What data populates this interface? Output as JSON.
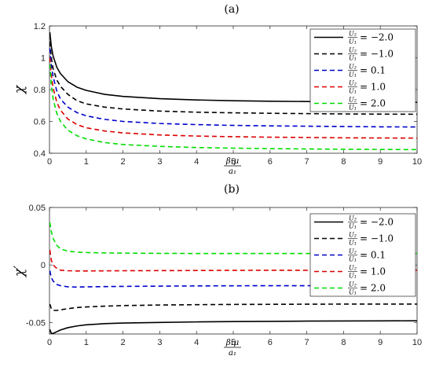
{
  "chart_data": [
    {
      "type": "line",
      "title": "(a)",
      "ylabel": "χ",
      "xlabel": {
        "num": "β₁μ",
        "den": "a₁"
      },
      "xlim": [
        0,
        10
      ],
      "ylim": [
        0.4,
        1.2
      ],
      "xticks": [
        0,
        1,
        2,
        3,
        4,
        5,
        6,
        7,
        8,
        9,
        10
      ],
      "yticks": [
        0.4,
        0.6,
        0.8,
        1,
        1.2
      ],
      "ytick_labels": [
        "0.4",
        "0.6",
        "0.8",
        "1",
        "1.2"
      ],
      "grid": false,
      "legend_position": "top-right",
      "x": [
        0.01,
        0.05,
        0.1,
        0.2,
        0.3,
        0.5,
        0.75,
        1,
        1.5,
        2,
        3,
        4,
        5,
        6,
        7,
        8,
        9,
        10
      ],
      "series": [
        {
          "name": "U₂/U₁ = −2.0",
          "ratio": "= −2.0",
          "color": "#000000",
          "dash": "solid",
          "values": [
            1.16,
            1.07,
            1.01,
            0.94,
            0.9,
            0.85,
            0.815,
            0.795,
            0.77,
            0.757,
            0.743,
            0.735,
            0.73,
            0.727,
            0.725,
            0.723,
            0.722,
            0.72
          ]
        },
        {
          "name": "U₂/U₁ = −1.0",
          "ratio": "= −1.0",
          "color": "#000000",
          "dash": "dashed",
          "values": [
            1.1,
            1.0,
            0.93,
            0.86,
            0.82,
            0.77,
            0.73,
            0.71,
            0.69,
            0.678,
            0.665,
            0.658,
            0.654,
            0.651,
            0.649,
            0.647,
            0.646,
            0.645
          ]
        },
        {
          "name": "U₂/U₁ = 0.1",
          "ratio": "= 0.1",
          "color": "#0000cc",
          "dash": "dashed",
          "values": [
            1.06,
            0.95,
            0.88,
            0.79,
            0.74,
            0.69,
            0.655,
            0.635,
            0.613,
            0.6,
            0.587,
            0.58,
            0.575,
            0.572,
            0.57,
            0.568,
            0.566,
            0.565
          ]
        },
        {
          "name": "U₂/U₁ = 1.0",
          "ratio": "= 1.0",
          "color": "#dd0000",
          "dash": "dashed",
          "values": [
            1.0,
            0.89,
            0.81,
            0.72,
            0.67,
            0.615,
            0.58,
            0.56,
            0.54,
            0.528,
            0.515,
            0.508,
            0.504,
            0.501,
            0.499,
            0.497,
            0.496,
            0.495
          ]
        },
        {
          "name": "U₂/U₁ = 2.0",
          "ratio": "= 2.0",
          "color": "#00dd00",
          "dash": "dashed",
          "values": [
            0.96,
            0.83,
            0.74,
            0.65,
            0.6,
            0.545,
            0.51,
            0.49,
            0.467,
            0.455,
            0.443,
            0.436,
            0.432,
            0.429,
            0.427,
            0.425,
            0.424,
            0.423
          ]
        }
      ]
    },
    {
      "type": "line",
      "title": "(b)",
      "ylabel": "χ′",
      "xlabel": {
        "num": "β₁μ",
        "den": "a₁"
      },
      "xlim": [
        0,
        10
      ],
      "ylim": [
        -0.06,
        0.05
      ],
      "xticks": [
        0,
        1,
        2,
        3,
        4,
        5,
        6,
        7,
        8,
        9,
        10
      ],
      "yticks": [
        -0.05,
        0,
        0.05
      ],
      "ytick_labels": [
        "-0.05",
        "0",
        "0.05"
      ],
      "grid": false,
      "legend_position": "top-right",
      "x": [
        0.01,
        0.05,
        0.1,
        0.2,
        0.3,
        0.5,
        0.75,
        1,
        1.5,
        2,
        3,
        4,
        5,
        6,
        7,
        8,
        9,
        10
      ],
      "series": [
        {
          "name": "U₂/U₁ = −2.0",
          "ratio": "= −2.0",
          "color": "#000000",
          "dash": "solid",
          "values": [
            -0.056,
            -0.0595,
            -0.0595,
            -0.058,
            -0.0565,
            -0.0545,
            -0.053,
            -0.052,
            -0.051,
            -0.0505,
            -0.05,
            -0.0495,
            -0.0492,
            -0.049,
            -0.0488,
            -0.0487,
            -0.0486,
            -0.0485
          ]
        },
        {
          "name": "U₂/U₁ = −1.0",
          "ratio": "= −1.0",
          "color": "#000000",
          "dash": "dashed",
          "values": [
            -0.034,
            -0.038,
            -0.0395,
            -0.0395,
            -0.039,
            -0.038,
            -0.037,
            -0.0365,
            -0.0358,
            -0.0353,
            -0.0348,
            -0.0345,
            -0.0343,
            -0.0342,
            -0.0341,
            -0.034,
            -0.034,
            -0.034
          ]
        },
        {
          "name": "U₂/U₁ = 0.1",
          "ratio": "= 0.1",
          "color": "#0000cc",
          "dash": "dashed",
          "values": [
            -0.005,
            -0.011,
            -0.014,
            -0.017,
            -0.018,
            -0.019,
            -0.0192,
            -0.019,
            -0.0188,
            -0.0186,
            -0.0184,
            -0.0182,
            -0.0181,
            -0.018,
            -0.018,
            -0.0179,
            -0.0179,
            -0.0178
          ]
        },
        {
          "name": "U₂/U₁ = 1.0",
          "ratio": "= 1.0",
          "color": "#dd0000",
          "dash": "dashed",
          "values": [
            0.013,
            0.004,
            0.0,
            -0.003,
            -0.0045,
            -0.005,
            -0.0052,
            -0.0052,
            -0.0051,
            -0.005,
            -0.0049,
            -0.0048,
            -0.0047,
            -0.0046,
            -0.0046,
            -0.0045,
            -0.0045,
            -0.0045
          ]
        },
        {
          "name": "U₂/U₁ = 2.0",
          "ratio": "= 2.0",
          "color": "#00dd00",
          "dash": "dashed",
          "values": [
            0.037,
            0.029,
            0.023,
            0.017,
            0.014,
            0.012,
            0.0112,
            0.0108,
            0.0105,
            0.0103,
            0.0101,
            0.01,
            0.01,
            0.01,
            0.01,
            0.01,
            0.01,
            0.01
          ]
        }
      ]
    }
  ]
}
